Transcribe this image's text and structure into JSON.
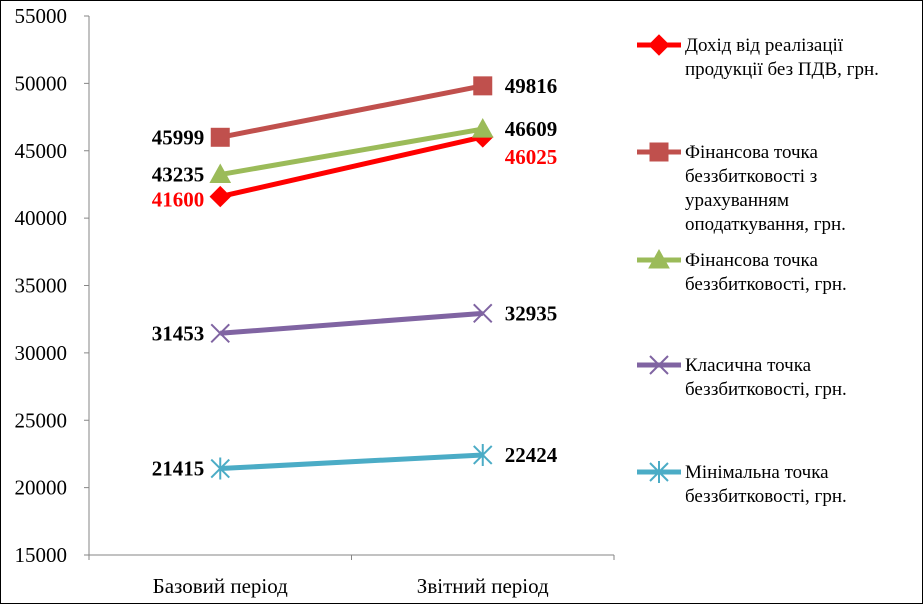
{
  "chart_data": {
    "type": "line",
    "title": "",
    "xlabel": "",
    "ylabel": "",
    "ylim": [
      15000,
      55000
    ],
    "yticks": [
      15000,
      20000,
      25000,
      30000,
      35000,
      40000,
      45000,
      50000,
      55000
    ],
    "grid": false,
    "legend_position": "right",
    "categories": [
      "Базовий період",
      "Звітний період"
    ],
    "series": [
      {
        "name": [
          "Дохід від реалізації",
          "продукції без ПДВ, грн."
        ],
        "values": [
          41600,
          46025
        ],
        "labels": [
          "41600",
          "46025"
        ],
        "color": "#FF0000",
        "label_color": "#FF0000",
        "marker": "diamond",
        "label_side": [
          "left-below",
          "right-below"
        ]
      },
      {
        "name": [
          "Фінансова точка",
          "беззбитковості з",
          "урахуванням",
          "оподаткування, грн."
        ],
        "values": [
          45999,
          49816
        ],
        "labels": [
          "45999",
          "49816"
        ],
        "color": "#C0504D",
        "label_color": "#000000",
        "marker": "square",
        "label_side": [
          "left",
          "right"
        ]
      },
      {
        "name": [
          "Фінансова точка",
          "беззбитковості, грн."
        ],
        "values": [
          43235,
          46609
        ],
        "labels": [
          "43235",
          "46609"
        ],
        "color": "#9BBB59",
        "label_color": "#000000",
        "marker": "triangle",
        "label_side": [
          "left",
          "right"
        ]
      },
      {
        "name": [
          "Класична точка",
          "беззбитковості, грн."
        ],
        "values": [
          31453,
          32935
        ],
        "labels": [
          "31453",
          "32935"
        ],
        "color": "#8064A2",
        "label_color": "#000000",
        "marker": "x",
        "label_side": [
          "left",
          "right"
        ]
      },
      {
        "name": [
          "Мінімальна точка",
          "беззбитковості, грн."
        ],
        "values": [
          21415,
          22424
        ],
        "labels": [
          "21415",
          "22424"
        ],
        "color": "#4BACC6",
        "label_color": "#000000",
        "marker": "star",
        "label_side": [
          "left",
          "right"
        ]
      }
    ]
  }
}
